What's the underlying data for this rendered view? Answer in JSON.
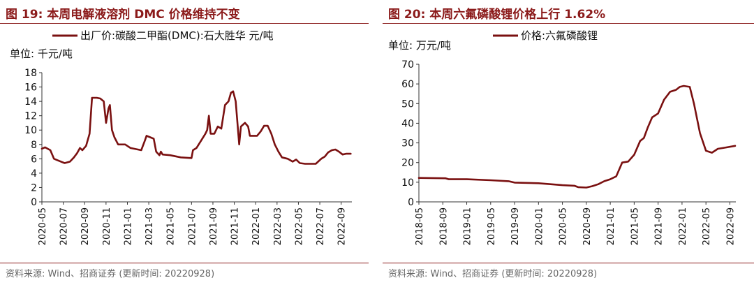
{
  "panels": [
    {
      "title": "图 19:  本周电解液溶剂 DMC 价格维持不变",
      "source": "资料来源: Wind、招商证券 (更新时间: 20220928)"
    },
    {
      "title": "图 20:  本周六氟磷酸锂价格上行 1.62%",
      "source": "资料来源: Wind、招商证券 (更新时间: 20220928)"
    }
  ],
  "colors": {
    "accent": "#8b1a1a",
    "series": "#7a1010"
  },
  "chart_data": [
    {
      "type": "line",
      "unit_label": "单位:  千元/吨",
      "legend": "top-left",
      "grid": false,
      "ylim": [
        0,
        18
      ],
      "yticks": [
        0,
        2,
        4,
        6,
        8,
        10,
        12,
        14,
        16,
        18
      ],
      "xlim": [
        "2020-05",
        "2022-10"
      ],
      "xticks": [
        "2020-05",
        "2020-07",
        "2020-09",
        "2020-11",
        "2021-01",
        "2021-03",
        "2021-05",
        "2021-07",
        "2021-09",
        "2021-11",
        "2022-01",
        "2022-03",
        "2022-05",
        "2022-07",
        "2022-09"
      ],
      "series": [
        {
          "name": "出厂价:碳酸二甲酯(DMC):石大胜华 元/吨",
          "points": [
            [
              "2020-05-01",
              7.4
            ],
            [
              "2020-05-10",
              7.6
            ],
            [
              "2020-05-25",
              7.2
            ],
            [
              "2020-06-05",
              6.0
            ],
            [
              "2020-06-20",
              5.7
            ],
            [
              "2020-07-05",
              5.4
            ],
            [
              "2020-07-20",
              5.6
            ],
            [
              "2020-08-01",
              6.2
            ],
            [
              "2020-08-10",
              6.8
            ],
            [
              "2020-08-18",
              7.5
            ],
            [
              "2020-08-25",
              7.2
            ],
            [
              "2020-09-05",
              7.8
            ],
            [
              "2020-09-15",
              9.5
            ],
            [
              "2020-09-22",
              14.5
            ],
            [
              "2020-10-05",
              14.5
            ],
            [
              "2020-10-15",
              14.4
            ],
            [
              "2020-10-25",
              14.0
            ],
            [
              "2020-11-01",
              11.0
            ],
            [
              "2020-11-08",
              13.0
            ],
            [
              "2020-11-12",
              13.5
            ],
            [
              "2020-11-18",
              10.0
            ],
            [
              "2020-11-25",
              9.0
            ],
            [
              "2020-12-05",
              8.0
            ],
            [
              "2020-12-25",
              8.0
            ],
            [
              "2021-01-10",
              7.5
            ],
            [
              "2021-02-10",
              7.2
            ],
            [
              "2021-02-20",
              8.5
            ],
            [
              "2021-02-25",
              9.2
            ],
            [
              "2021-03-05",
              9.0
            ],
            [
              "2021-03-15",
              8.8
            ],
            [
              "2021-03-22",
              7.0
            ],
            [
              "2021-04-01",
              6.5
            ],
            [
              "2021-04-05",
              7.0
            ],
            [
              "2021-04-10",
              6.6
            ],
            [
              "2021-05-01",
              6.5
            ],
            [
              "2021-06-01",
              6.2
            ],
            [
              "2021-07-01",
              6.1
            ],
            [
              "2021-07-05",
              7.2
            ],
            [
              "2021-07-15",
              7.5
            ],
            [
              "2021-07-28",
              8.5
            ],
            [
              "2021-08-10",
              9.5
            ],
            [
              "2021-08-15",
              10.0
            ],
            [
              "2021-08-20",
              12.0
            ],
            [
              "2021-08-25",
              9.5
            ],
            [
              "2021-09-05",
              9.5
            ],
            [
              "2021-09-15",
              10.5
            ],
            [
              "2021-09-25",
              10.2
            ],
            [
              "2021-10-05",
              13.5
            ],
            [
              "2021-10-15",
              14.0
            ],
            [
              "2021-10-22",
              15.2
            ],
            [
              "2021-10-28",
              15.4
            ],
            [
              "2021-11-05",
              14.0
            ],
            [
              "2021-11-10",
              11.0
            ],
            [
              "2021-11-15",
              8.0
            ],
            [
              "2021-11-20",
              10.5
            ],
            [
              "2021-12-01",
              11.0
            ],
            [
              "2021-12-10",
              10.5
            ],
            [
              "2021-12-15",
              9.2
            ],
            [
              "2022-01-05",
              9.2
            ],
            [
              "2022-01-15",
              9.8
            ],
            [
              "2022-01-25",
              10.6
            ],
            [
              "2022-02-05",
              10.6
            ],
            [
              "2022-02-15",
              9.5
            ],
            [
              "2022-02-25",
              8.0
            ],
            [
              "2022-03-05",
              7.0
            ],
            [
              "2022-03-15",
              6.2
            ],
            [
              "2022-04-01",
              6.0
            ],
            [
              "2022-04-15",
              5.6
            ],
            [
              "2022-04-25",
              5.9
            ],
            [
              "2022-05-05",
              5.4
            ],
            [
              "2022-05-20",
              5.3
            ],
            [
              "2022-06-20",
              5.3
            ],
            [
              "2022-07-05",
              6.0
            ],
            [
              "2022-07-15",
              6.3
            ],
            [
              "2022-07-25",
              6.9
            ],
            [
              "2022-08-05",
              7.2
            ],
            [
              "2022-08-15",
              7.3
            ],
            [
              "2022-08-25",
              7.0
            ],
            [
              "2022-09-05",
              6.6
            ],
            [
              "2022-09-15",
              6.7
            ],
            [
              "2022-09-28",
              6.7
            ]
          ]
        }
      ]
    },
    {
      "type": "line",
      "unit_label": "单位:  万元/吨",
      "legend": "top-left",
      "grid": false,
      "ylim": [
        0,
        70
      ],
      "yticks": [
        0,
        10,
        20,
        30,
        40,
        50,
        60,
        70
      ],
      "xlim": [
        "2018-05",
        "2022-10"
      ],
      "xticks": [
        "2018-05",
        "2018-09",
        "2019-01",
        "2019-05",
        "2019-09",
        "2020-01",
        "2020-05",
        "2020-09",
        "2021-01",
        "2021-05",
        "2021-09",
        "2022-01",
        "2022-05",
        "2022-09"
      ],
      "series": [
        {
          "name": "价格:六氟磷酸锂",
          "points": [
            [
              "2018-05-01",
              12.2
            ],
            [
              "2018-09-15",
              12.0
            ],
            [
              "2018-10-01",
              11.5
            ],
            [
              "2019-01-01",
              11.5
            ],
            [
              "2019-05-01",
              11.0
            ],
            [
              "2019-08-01",
              10.5
            ],
            [
              "2019-09-01",
              9.8
            ],
            [
              "2020-01-01",
              9.5
            ],
            [
              "2020-03-01",
              9.0
            ],
            [
              "2020-05-01",
              8.5
            ],
            [
              "2020-07-01",
              8.2
            ],
            [
              "2020-07-20",
              7.5
            ],
            [
              "2020-09-01",
              7.3
            ],
            [
              "2020-10-01",
              8.0
            ],
            [
              "2020-11-01",
              9.0
            ],
            [
              "2020-12-01",
              10.5
            ],
            [
              "2021-01-01",
              11.5
            ],
            [
              "2021-02-01",
              13.0
            ],
            [
              "2021-03-01",
              20.0
            ],
            [
              "2021-04-01",
              20.5
            ],
            [
              "2021-05-01",
              24.0
            ],
            [
              "2021-06-01",
              31.0
            ],
            [
              "2021-06-20",
              32.5
            ],
            [
              "2021-07-10",
              38.0
            ],
            [
              "2021-08-01",
              43.0
            ],
            [
              "2021-09-01",
              45.0
            ],
            [
              "2021-10-01",
              52.0
            ],
            [
              "2021-11-01",
              56.0
            ],
            [
              "2021-12-01",
              57.0
            ],
            [
              "2021-12-20",
              58.5
            ],
            [
              "2022-01-10",
              59.0
            ],
            [
              "2022-02-10",
              58.5
            ],
            [
              "2022-03-01",
              50.0
            ],
            [
              "2022-04-01",
              35.0
            ],
            [
              "2022-05-01",
              26.0
            ],
            [
              "2022-06-01",
              25.0
            ],
            [
              "2022-07-01",
              27.0
            ],
            [
              "2022-08-01",
              27.5
            ],
            [
              "2022-09-28",
              28.5
            ]
          ]
        }
      ]
    }
  ]
}
